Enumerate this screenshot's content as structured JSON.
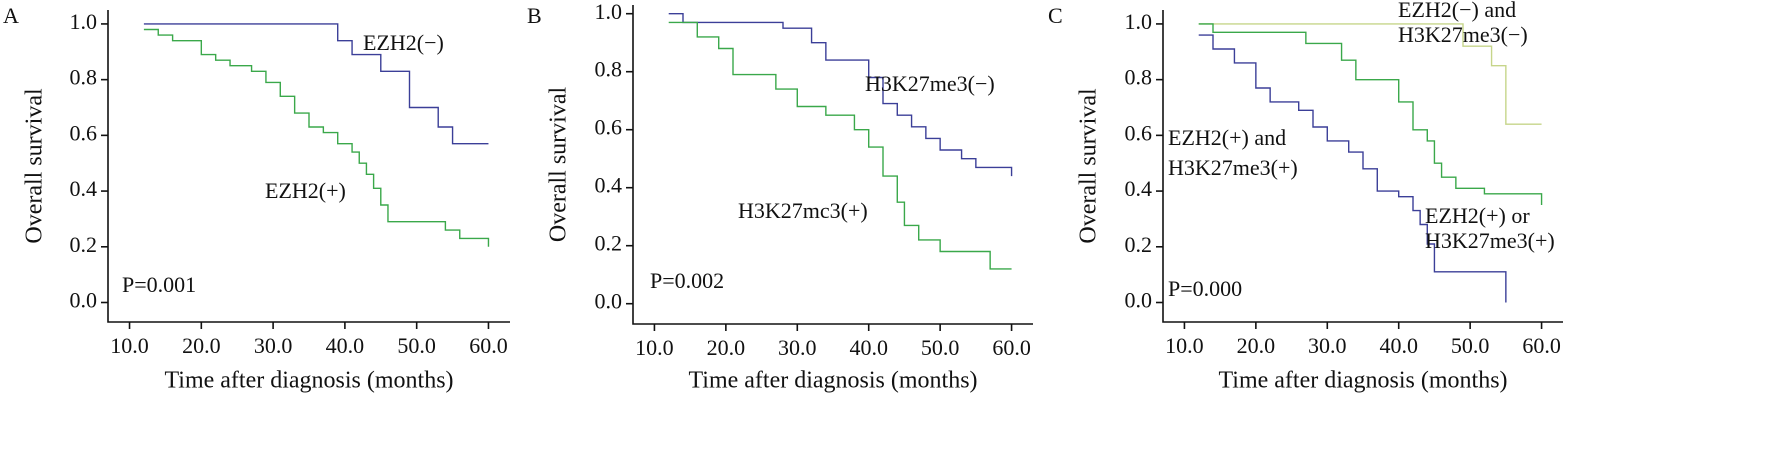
{
  "chart_data": [
    {
      "type": "step",
      "panel": "A",
      "xlabel": "Time after diagnosis (months)",
      "ylabel": "Overall survival",
      "xlim": [
        7,
        63
      ],
      "ylim": [
        -0.07,
        1.05
      ],
      "xticks": [
        {
          "value": 10,
          "label": "10.0"
        },
        {
          "value": 20,
          "label": "20.0"
        },
        {
          "value": 30,
          "label": "30.0"
        },
        {
          "value": 40,
          "label": "40.0"
        },
        {
          "value": 50,
          "label": "50.0"
        },
        {
          "value": 60,
          "label": "60.0"
        }
      ],
      "yticks": [
        {
          "value": 0,
          "label": "0.0"
        },
        {
          "value": 0.2,
          "label": "0.2"
        },
        {
          "value": 0.4,
          "label": "0.4"
        },
        {
          "value": 0.6,
          "label": "0.6"
        },
        {
          "value": 0.8,
          "label": "0.8"
        },
        {
          "value": 1,
          "label": "1.0"
        }
      ],
      "annotations": [
        "EZH2(−)",
        "EZH2(+)",
        "P=0.001"
      ],
      "series": [
        {
          "color": "#3b3f98",
          "x": [
            12,
            39,
            41,
            45,
            49,
            53,
            55,
            60
          ],
          "values": [
            1.0,
            0.94,
            0.89,
            0.83,
            0.7,
            0.63,
            0.57,
            0.57
          ]
        },
        {
          "color": "#3aa84a",
          "x": [
            12,
            14,
            16,
            18,
            20,
            22,
            24,
            27,
            29,
            31,
            33,
            35,
            37,
            39,
            41,
            42,
            43,
            44,
            45,
            46,
            50,
            54,
            56,
            60
          ],
          "values": [
            0.98,
            0.96,
            0.94,
            0.94,
            0.89,
            0.87,
            0.85,
            0.83,
            0.79,
            0.74,
            0.68,
            0.63,
            0.61,
            0.57,
            0.54,
            0.5,
            0.46,
            0.41,
            0.35,
            0.29,
            0.29,
            0.26,
            0.23,
            0.2
          ]
        }
      ]
    },
    {
      "type": "step",
      "panel": "B",
      "xlabel": "Time after diagnosis (months)",
      "ylabel": "Overall survival",
      "xlim": [
        7,
        63
      ],
      "ylim": [
        -0.07,
        1.03
      ],
      "xticks": [
        {
          "value": 10,
          "label": "10.0"
        },
        {
          "value": 20,
          "label": "20.0"
        },
        {
          "value": 30,
          "label": "30.0"
        },
        {
          "value": 40,
          "label": "40.0"
        },
        {
          "value": 50,
          "label": "50.0"
        },
        {
          "value": 60,
          "label": "60.0"
        }
      ],
      "yticks": [
        {
          "value": 0,
          "label": "0.0"
        },
        {
          "value": 0.2,
          "label": "0.2"
        },
        {
          "value": 0.4,
          "label": "0.4"
        },
        {
          "value": 0.6,
          "label": "0.6"
        },
        {
          "value": 0.8,
          "label": "0.8"
        },
        {
          "value": 1,
          "label": "1.0"
        }
      ],
      "annotations": [
        "H3K27me3(−)",
        "H3K27mc3(+)",
        "P=0.002"
      ],
      "series": [
        {
          "color": "#3b3f98",
          "x": [
            12,
            14,
            18,
            22,
            28,
            32,
            34,
            37,
            40,
            42,
            44,
            46,
            48,
            50,
            53,
            55,
            57,
            60
          ],
          "values": [
            1.0,
            0.97,
            0.97,
            0.97,
            0.95,
            0.9,
            0.84,
            0.84,
            0.78,
            0.69,
            0.65,
            0.61,
            0.57,
            0.53,
            0.5,
            0.47,
            0.47,
            0.44
          ]
        },
        {
          "color": "#3aa84a",
          "x": [
            12,
            16,
            19,
            21,
            24,
            27,
            30,
            34,
            38,
            40,
            42,
            44,
            45,
            47,
            50,
            55,
            57,
            60
          ],
          "values": [
            0.97,
            0.92,
            0.88,
            0.79,
            0.79,
            0.74,
            0.68,
            0.65,
            0.6,
            0.54,
            0.44,
            0.35,
            0.27,
            0.22,
            0.18,
            0.18,
            0.12,
            0.12
          ]
        }
      ]
    },
    {
      "type": "step",
      "panel": "C",
      "xlabel": "Time after diagnosis (months)",
      "ylabel": "Overall survival",
      "xlim": [
        7,
        63
      ],
      "ylim": [
        -0.07,
        1.05
      ],
      "xticks": [
        {
          "value": 10,
          "label": "10.0"
        },
        {
          "value": 20,
          "label": "20.0"
        },
        {
          "value": 30,
          "label": "30.0"
        },
        {
          "value": 40,
          "label": "40.0"
        },
        {
          "value": 50,
          "label": "50.0"
        },
        {
          "value": 60,
          "label": "60.0"
        }
      ],
      "yticks": [
        {
          "value": 0,
          "label": "0.0"
        },
        {
          "value": 0.2,
          "label": "0.2"
        },
        {
          "value": 0.4,
          "label": "0.4"
        },
        {
          "value": 0.6,
          "label": "0.6"
        },
        {
          "value": 0.8,
          "label": "0.8"
        },
        {
          "value": 1,
          "label": "1.0"
        }
      ],
      "annotations": [
        "EZH2(−) and",
        "H3K27me3(−)",
        "EZH2(+) and",
        "H3K27me3(+)",
        "EZH2(+) or",
        "H3K27me3(+)",
        "P=0.000"
      ],
      "series": [
        {
          "color": "#c6d58a",
          "x": [
            12,
            49,
            53,
            55,
            60
          ],
          "values": [
            1.0,
            0.92,
            0.85,
            0.64,
            0.64
          ]
        },
        {
          "color": "#3aa84a",
          "x": [
            12,
            14,
            18,
            27,
            32,
            34,
            36,
            40,
            42,
            44,
            45,
            46,
            48,
            52,
            56,
            60
          ],
          "values": [
            1.0,
            0.97,
            0.97,
            0.93,
            0.87,
            0.8,
            0.8,
            0.72,
            0.62,
            0.58,
            0.5,
            0.45,
            0.41,
            0.39,
            0.39,
            0.35
          ]
        },
        {
          "color": "#3b3f98",
          "x": [
            12,
            14,
            17,
            20,
            22,
            26,
            28,
            30,
            33,
            35,
            37,
            40,
            42,
            43,
            44,
            45,
            50,
            55
          ],
          "values": [
            0.96,
            0.91,
            0.86,
            0.77,
            0.72,
            0.69,
            0.63,
            0.58,
            0.54,
            0.48,
            0.4,
            0.38,
            0.33,
            0.28,
            0.21,
            0.11,
            0.11,
            0.0
          ]
        }
      ]
    }
  ]
}
